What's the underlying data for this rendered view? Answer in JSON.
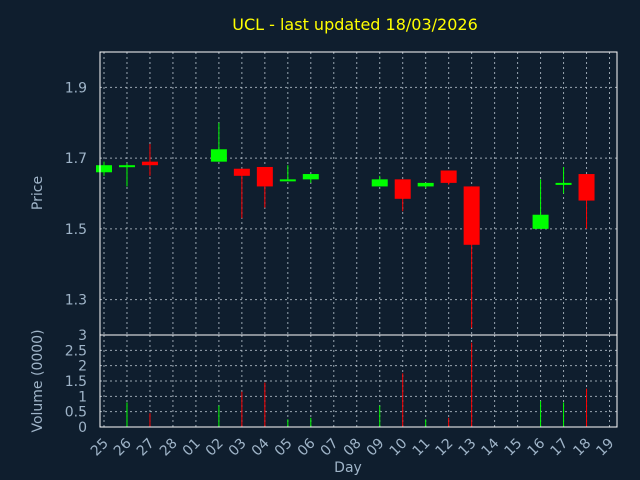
{
  "chart_data": [
    {
      "type": "candlestick",
      "title": "UCL - last updated 18/03/2026",
      "ylabel": "Price",
      "ylim": [
        1.2,
        2.0
      ],
      "yticks": [
        1.3,
        1.5,
        1.7,
        1.9
      ],
      "colors": {
        "up": "#00ff00",
        "down": "#ff0000",
        "title": "#ffff00",
        "axis_text": "#9fb4c8",
        "background": "#0f1e2e"
      },
      "x": [
        "25",
        "26",
        "27",
        "28",
        "01",
        "02",
        "03",
        "04",
        "05",
        "06",
        "07",
        "08",
        "09",
        "10",
        "11",
        "12",
        "13",
        "14",
        "15",
        "16",
        "17",
        "18",
        "19"
      ],
      "candles": [
        {
          "day": "25",
          "open": 1.66,
          "close": 1.68,
          "high": 1.69,
          "low": 1.65
        },
        {
          "day": "26",
          "open": 1.675,
          "close": 1.68,
          "high": 1.685,
          "low": 1.62
        },
        {
          "day": "27",
          "open": 1.69,
          "close": 1.68,
          "high": 1.74,
          "low": 1.65
        },
        {
          "day": "02",
          "open": 1.69,
          "close": 1.725,
          "high": 1.8,
          "low": 1.69
        },
        {
          "day": "03",
          "open": 1.67,
          "close": 1.65,
          "high": 1.67,
          "low": 1.53
        },
        {
          "day": "04",
          "open": 1.675,
          "close": 1.62,
          "high": 1.675,
          "low": 1.56
        },
        {
          "day": "05",
          "open": 1.635,
          "close": 1.64,
          "high": 1.68,
          "low": 1.635
        },
        {
          "day": "06",
          "open": 1.64,
          "close": 1.655,
          "high": 1.655,
          "low": 1.63
        },
        {
          "day": "09",
          "open": 1.62,
          "close": 1.64,
          "high": 1.65,
          "low": 1.62
        },
        {
          "day": "10",
          "open": 1.64,
          "close": 1.585,
          "high": 1.64,
          "low": 1.55
        },
        {
          "day": "11",
          "open": 1.62,
          "close": 1.63,
          "high": 1.63,
          "low": 1.615
        },
        {
          "day": "12",
          "open": 1.665,
          "close": 1.63,
          "high": 1.665,
          "low": 1.625
        },
        {
          "day": "13",
          "open": 1.62,
          "close": 1.455,
          "high": 1.62,
          "low": 1.22
        },
        {
          "day": "16",
          "open": 1.5,
          "close": 1.54,
          "high": 1.64,
          "low": 1.5
        },
        {
          "day": "17",
          "open": 1.625,
          "close": 1.63,
          "high": 1.675,
          "low": 1.6
        },
        {
          "day": "18",
          "open": 1.655,
          "close": 1.58,
          "high": 1.655,
          "low": 1.5
        }
      ]
    },
    {
      "type": "bar",
      "ylabel": "Volume (0000)",
      "xlabel": "Day",
      "ylim": [
        0,
        3
      ],
      "yticks": [
        0,
        0.5,
        1,
        1.5,
        2,
        2.5,
        3
      ],
      "ytick_labels": [
        "0",
        "0.5",
        "1",
        "1.5",
        "2",
        "2.5",
        "3"
      ],
      "categories": [
        "25",
        "26",
        "27",
        "28",
        "01",
        "02",
        "03",
        "04",
        "05",
        "06",
        "07",
        "08",
        "09",
        "10",
        "11",
        "12",
        "13",
        "14",
        "15",
        "16",
        "17",
        "18",
        "19"
      ],
      "values": [
        {
          "day": "26",
          "volume": 0.8,
          "direction": "up"
        },
        {
          "day": "27",
          "volume": 0.45,
          "direction": "down"
        },
        {
          "day": "02",
          "volume": 0.7,
          "direction": "up"
        },
        {
          "day": "03",
          "volume": 1.15,
          "direction": "down"
        },
        {
          "day": "04",
          "volume": 1.45,
          "direction": "down"
        },
        {
          "day": "05",
          "volume": 0.25,
          "direction": "up"
        },
        {
          "day": "06",
          "volume": 0.3,
          "direction": "up"
        },
        {
          "day": "09",
          "volume": 0.7,
          "direction": "up"
        },
        {
          "day": "10",
          "volume": 1.75,
          "direction": "down"
        },
        {
          "day": "11",
          "volume": 0.25,
          "direction": "up"
        },
        {
          "day": "12",
          "volume": 0.3,
          "direction": "down"
        },
        {
          "day": "13",
          "volume": 2.75,
          "direction": "down"
        },
        {
          "day": "16",
          "volume": 0.85,
          "direction": "up"
        },
        {
          "day": "17",
          "volume": 0.8,
          "direction": "up"
        },
        {
          "day": "18",
          "volume": 1.25,
          "direction": "down"
        }
      ]
    }
  ]
}
